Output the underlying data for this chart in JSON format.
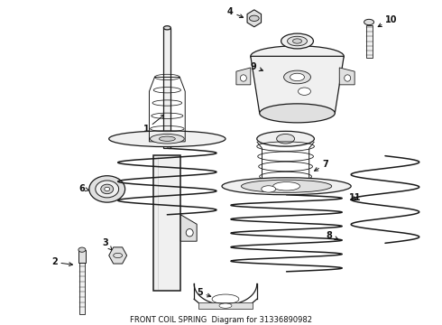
{
  "title": "FRONT COIL SPRING",
  "part_number": "31336890982",
  "bg": "#ffffff",
  "lc": "#1a1a1a",
  "fig_w": 4.9,
  "fig_h": 3.6,
  "dpi": 100
}
